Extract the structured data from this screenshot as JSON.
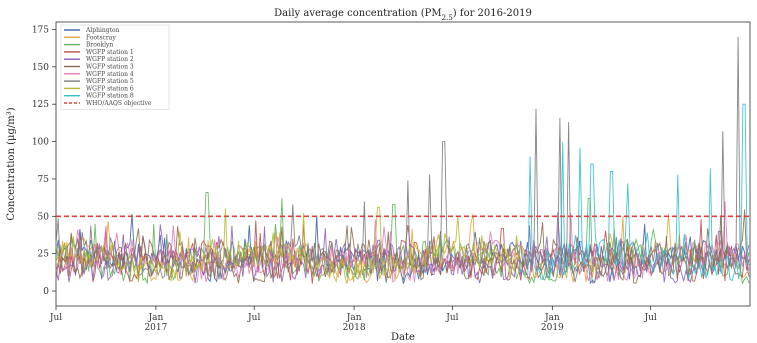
{
  "chart_data": {
    "type": "line",
    "title": "Daily average concentration (PM",
    "title_sub": "2.5",
    "title_suffix": ") for 2016-2019",
    "xlabel": "Date",
    "ylabel": "Concentration (μg/m³)",
    "ylim": [
      -10,
      180
    ],
    "xlim": [
      "2016-07-01",
      "2019-12-31"
    ],
    "grid": false,
    "legend_position": "top-left",
    "x_ticks": [
      {
        "date": "2016-07-01",
        "label": "Jul",
        "sub": ""
      },
      {
        "date": "2017-01-01",
        "label": "Jan",
        "sub": "2017"
      },
      {
        "date": "2017-07-01",
        "label": "Jul",
        "sub": ""
      },
      {
        "date": "2018-01-01",
        "label": "Jan",
        "sub": "2018"
      },
      {
        "date": "2018-07-01",
        "label": "Jul",
        "sub": ""
      },
      {
        "date": "2019-01-01",
        "label": "Jan",
        "sub": "2019"
      },
      {
        "date": "2019-07-01",
        "label": "Jul",
        "sub": ""
      }
    ],
    "y_ticks": [
      0,
      25,
      50,
      75,
      100,
      125,
      150,
      175
    ],
    "reference_line": {
      "name": "WHO/AAQS objective",
      "value": 50,
      "color": "#e0403a"
    },
    "series": [
      {
        "name": "Alphington",
        "color": "#3b5fb0",
        "start": "2016-07-01",
        "end": "2019-12-31",
        "peaks": [
          [
            "2016-07-20",
            30
          ],
          [
            "2017-06-15",
            35
          ],
          [
            "2018-06-10",
            40
          ],
          [
            "2019-06-20",
            45
          ]
        ]
      },
      {
        "name": "Footscray",
        "color": "#e8a33a",
        "start": "2016-07-01",
        "end": "2019-12-31",
        "peaks": [
          [
            "2016-08-20",
            35
          ],
          [
            "2017-08-10",
            40
          ],
          [
            "2018-08-05",
            45
          ],
          [
            "2019-05-10",
            50
          ]
        ]
      },
      {
        "name": "Brooklyn",
        "color": "#5fb35a",
        "start": "2016-07-01",
        "end": "2019-12-31",
        "peaks": [
          [
            "2016-09-10",
            45
          ],
          [
            "2017-04-05",
            66
          ],
          [
            "2017-08-20",
            62
          ],
          [
            "2018-03-15",
            58
          ],
          [
            "2019-03-10",
            62
          ]
        ]
      },
      {
        "name": "WGFP station 1",
        "color": "#c04a4a",
        "start": "2016-07-01",
        "end": "2019-12-31",
        "peaks": [
          [
            "2016-10-01",
            40
          ],
          [
            "2017-10-01",
            45
          ],
          [
            "2018-10-01",
            42
          ],
          [
            "2019-10-01",
            48
          ]
        ]
      },
      {
        "name": "WGFP station 2",
        "color": "#8b5fb5",
        "start": "2016-07-01",
        "end": "2019-12-31",
        "peaks": [
          [
            "2016-11-01",
            38
          ],
          [
            "2017-11-10",
            42
          ],
          [
            "2018-11-20",
            44
          ],
          [
            "2019-11-05",
            40
          ]
        ]
      },
      {
        "name": "WGFP station 3",
        "color": "#8a6a4a",
        "start": "2016-07-01",
        "end": "2019-12-31",
        "peaks": [
          [
            "2016-12-01",
            42
          ],
          [
            "2017-12-20",
            44
          ],
          [
            "2018-12-15",
            46
          ]
        ]
      },
      {
        "name": "WGFP station 4",
        "color": "#e37ab8",
        "start": "2016-07-01",
        "end": "2019-12-31",
        "peaks": [
          [
            "2017-02-01",
            44
          ],
          [
            "2018-02-10",
            48
          ],
          [
            "2019-02-05",
            52
          ],
          [
            "2019-11-15",
            60
          ]
        ]
      },
      {
        "name": "WGFP station 5",
        "color": "#7a7a7a",
        "start": "2016-07-01",
        "end": "2019-12-31",
        "peaks": [
          [
            "2017-09-10",
            58
          ],
          [
            "2018-01-20",
            60
          ],
          [
            "2018-04-10",
            74
          ],
          [
            "2018-05-20",
            78
          ],
          [
            "2018-06-15",
            100
          ],
          [
            "2018-12-01",
            122
          ],
          [
            "2019-01-15",
            116
          ],
          [
            "2019-02-01",
            113
          ],
          [
            "2019-11-10",
            107
          ],
          [
            "2019-12-10",
            170
          ]
        ]
      },
      {
        "name": "WGFP station 6",
        "color": "#b8b830",
        "start": "2016-07-01",
        "end": "2018-11-15",
        "peaks": [
          [
            "2017-02-15",
            40
          ],
          [
            "2017-05-10",
            55
          ],
          [
            "2017-10-01",
            52
          ],
          [
            "2018-02-15",
            56
          ],
          [
            "2018-07-10",
            50
          ]
        ]
      },
      {
        "name": "WGFP station 8",
        "color": "#2fbfcf",
        "start": "2018-11-01",
        "end": "2019-12-31",
        "peaks": [
          [
            "2018-11-20",
            90
          ],
          [
            "2019-01-20",
            100
          ],
          [
            "2019-02-20",
            96
          ],
          [
            "2019-03-15",
            85
          ],
          [
            "2019-04-20",
            80
          ],
          [
            "2019-05-20",
            72
          ],
          [
            "2019-08-20",
            78
          ],
          [
            "2019-10-20",
            82
          ],
          [
            "2019-12-20",
            125
          ]
        ]
      }
    ]
  }
}
